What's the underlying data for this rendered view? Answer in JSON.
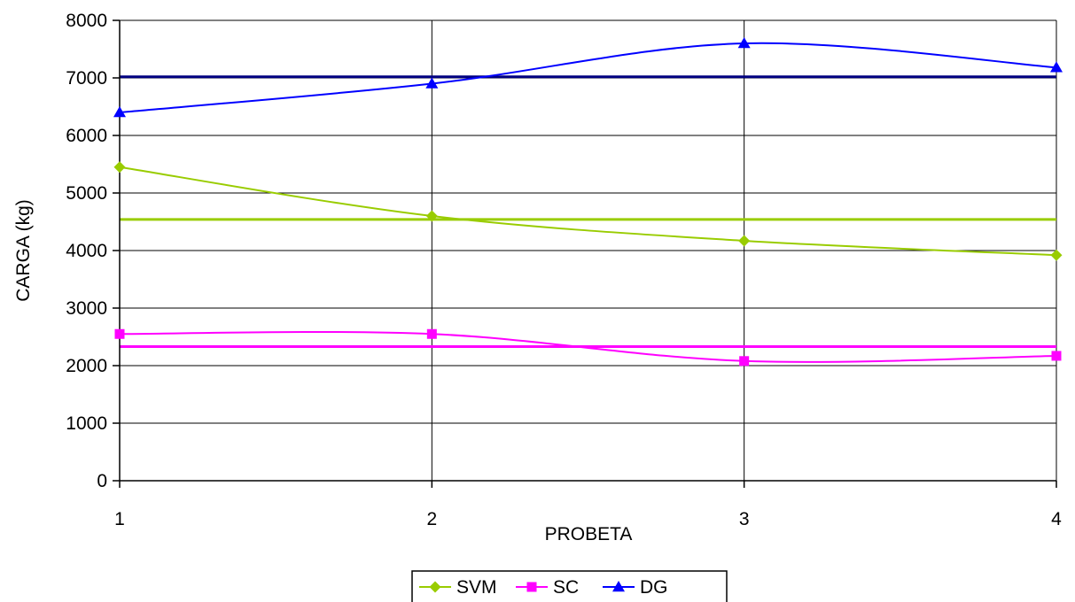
{
  "chart_data": {
    "type": "line",
    "x": [
      1,
      2,
      3,
      4
    ],
    "xlabel": "PROBETA",
    "ylabel": "CARGA (kg)",
    "ylim": [
      0,
      8000
    ],
    "yticks": [
      0,
      1000,
      2000,
      3000,
      4000,
      5000,
      6000,
      7000,
      8000
    ],
    "xticks": [
      1,
      2,
      3,
      4
    ],
    "grid": true,
    "legend_position": "bottom",
    "series": [
      {
        "name": "SVM",
        "values": [
          5450,
          4600,
          4170,
          3920
        ],
        "color": "#99cc00",
        "marker": "diamond"
      },
      {
        "name": "SC",
        "values": [
          2550,
          2550,
          2080,
          2170
        ],
        "color": "#ff00ff",
        "marker": "square"
      },
      {
        "name": "DG",
        "values": [
          6400,
          6900,
          7600,
          7180
        ],
        "color": "#0000ff",
        "marker": "triangle"
      }
    ],
    "reference_lines": [
      {
        "value": 4540,
        "color": "#99cc00"
      },
      {
        "value": 2330,
        "color": "#ff00ff"
      },
      {
        "value": 7020,
        "color": "#000080"
      }
    ]
  }
}
